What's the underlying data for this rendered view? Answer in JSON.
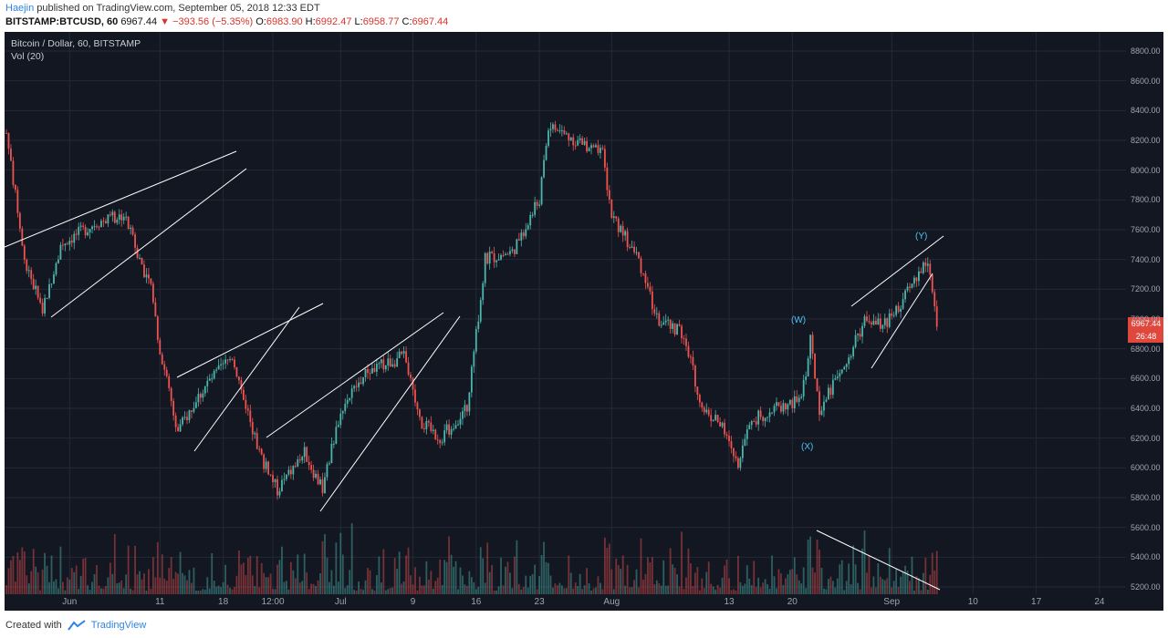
{
  "header": {
    "user": "Haejin",
    "published_text": " published on TradingView.com, September 05, 2018 12:33 EDT",
    "symbol": "BITSTAMP:BTCUSD, 60",
    "last": "6967.44",
    "change": "▼ −393.56 (−5.35%)",
    "o_label": "O:",
    "o_value": "6983.90",
    "h_label": "H:",
    "h_value": "6992.47",
    "l_label": "L:",
    "l_value": "6958.77",
    "c_label": "C:",
    "c_value": "6967.44"
  },
  "legend": {
    "title": "Bitcoin / Dollar, 60, BITSTAMP",
    "volume": "Vol (20)"
  },
  "price_tag": {
    "price": "6967.44",
    "countdown": "26:48"
  },
  "wave_labels": [
    "(W)",
    "(X)",
    "(Y)"
  ],
  "footer": {
    "created_with": "Created with",
    "brand": "TradingView"
  },
  "colors": {
    "background": "#131722",
    "up": "#4db6ac",
    "down": "#ef5350",
    "trendline": "#ffffff",
    "wave_label": "#4fc3f7"
  },
  "icons": [
    "tradingview-logo-icon"
  ],
  "chart_data": {
    "type": "candlestick",
    "symbol": "BTCUSD",
    "timeframe": "60",
    "exchange": "BITSTAMP",
    "yticks": [
      5200,
      5400,
      5600,
      5800,
      6000,
      6200,
      6400,
      6600,
      6800,
      7000,
      7200,
      7400,
      7600,
      7800,
      8000,
      8200,
      8400,
      8600,
      8800
    ],
    "ylim": [
      5150,
      8900
    ],
    "xlabels": [
      "Jun",
      "11",
      "18",
      "12:00",
      "Jul",
      "9",
      "16",
      "23",
      "Aug",
      "13",
      "20",
      "Sep",
      "10",
      "17",
      "24"
    ],
    "price_path": [
      {
        "date": "May 25",
        "price": 8250
      },
      {
        "date": "May 27",
        "price": 7400
      },
      {
        "date": "May 29",
        "price": 7050
      },
      {
        "date": "May 31",
        "price": 7500
      },
      {
        "date": "Jun 04",
        "price": 7650
      },
      {
        "date": "Jun 07",
        "price": 7700
      },
      {
        "date": "Jun 10",
        "price": 7200
      },
      {
        "date": "Jun 11",
        "price": 6800
      },
      {
        "date": "Jun 13",
        "price": 6250
      },
      {
        "date": "Jun 16",
        "price": 6550
      },
      {
        "date": "Jun 19",
        "price": 6750
      },
      {
        "date": "Jun 22",
        "price": 6100
      },
      {
        "date": "Jun 24",
        "price": 5850
      },
      {
        "date": "Jun 27",
        "price": 6100
      },
      {
        "date": "Jun 29",
        "price": 5850
      },
      {
        "date": "Jul 01",
        "price": 6400
      },
      {
        "date": "Jul 04",
        "price": 6650
      },
      {
        "date": "Jul 08",
        "price": 6750
      },
      {
        "date": "Jul 10",
        "price": 6300
      },
      {
        "date": "Jul 12",
        "price": 6200
      },
      {
        "date": "Jul 15",
        "price": 6400
      },
      {
        "date": "Jul 17",
        "price": 7400
      },
      {
        "date": "Jul 20",
        "price": 7450
      },
      {
        "date": "Jul 23",
        "price": 7800
      },
      {
        "date": "Jul 24",
        "price": 8300
      },
      {
        "date": "Jul 27",
        "price": 8200
      },
      {
        "date": "Jul 30",
        "price": 8100
      },
      {
        "date": "Jul 31",
        "price": 7700
      },
      {
        "date": "Aug 03",
        "price": 7400
      },
      {
        "date": "Aug 05",
        "price": 7000
      },
      {
        "date": "Aug 08",
        "price": 6900
      },
      {
        "date": "Aug 10",
        "price": 6400
      },
      {
        "date": "Aug 12",
        "price": 6300
      },
      {
        "date": "Aug 14",
        "price": 6000
      },
      {
        "date": "Aug 15",
        "price": 6300
      },
      {
        "date": "Aug 18",
        "price": 6400
      },
      {
        "date": "Aug 21",
        "price": 6450
      },
      {
        "date": "Aug 22",
        "price": 6850
      },
      {
        "date": "Aug 23",
        "price": 6400
      },
      {
        "date": "Aug 26",
        "price": 6700
      },
      {
        "date": "Aug 28",
        "price": 7000
      },
      {
        "date": "Aug 30",
        "price": 6950
      },
      {
        "date": "Sep 01",
        "price": 7100
      },
      {
        "date": "Sep 03",
        "price": 7300
      },
      {
        "date": "Sep 04",
        "price": 7380
      },
      {
        "date": "Sep 05",
        "price": 6967
      }
    ]
  }
}
